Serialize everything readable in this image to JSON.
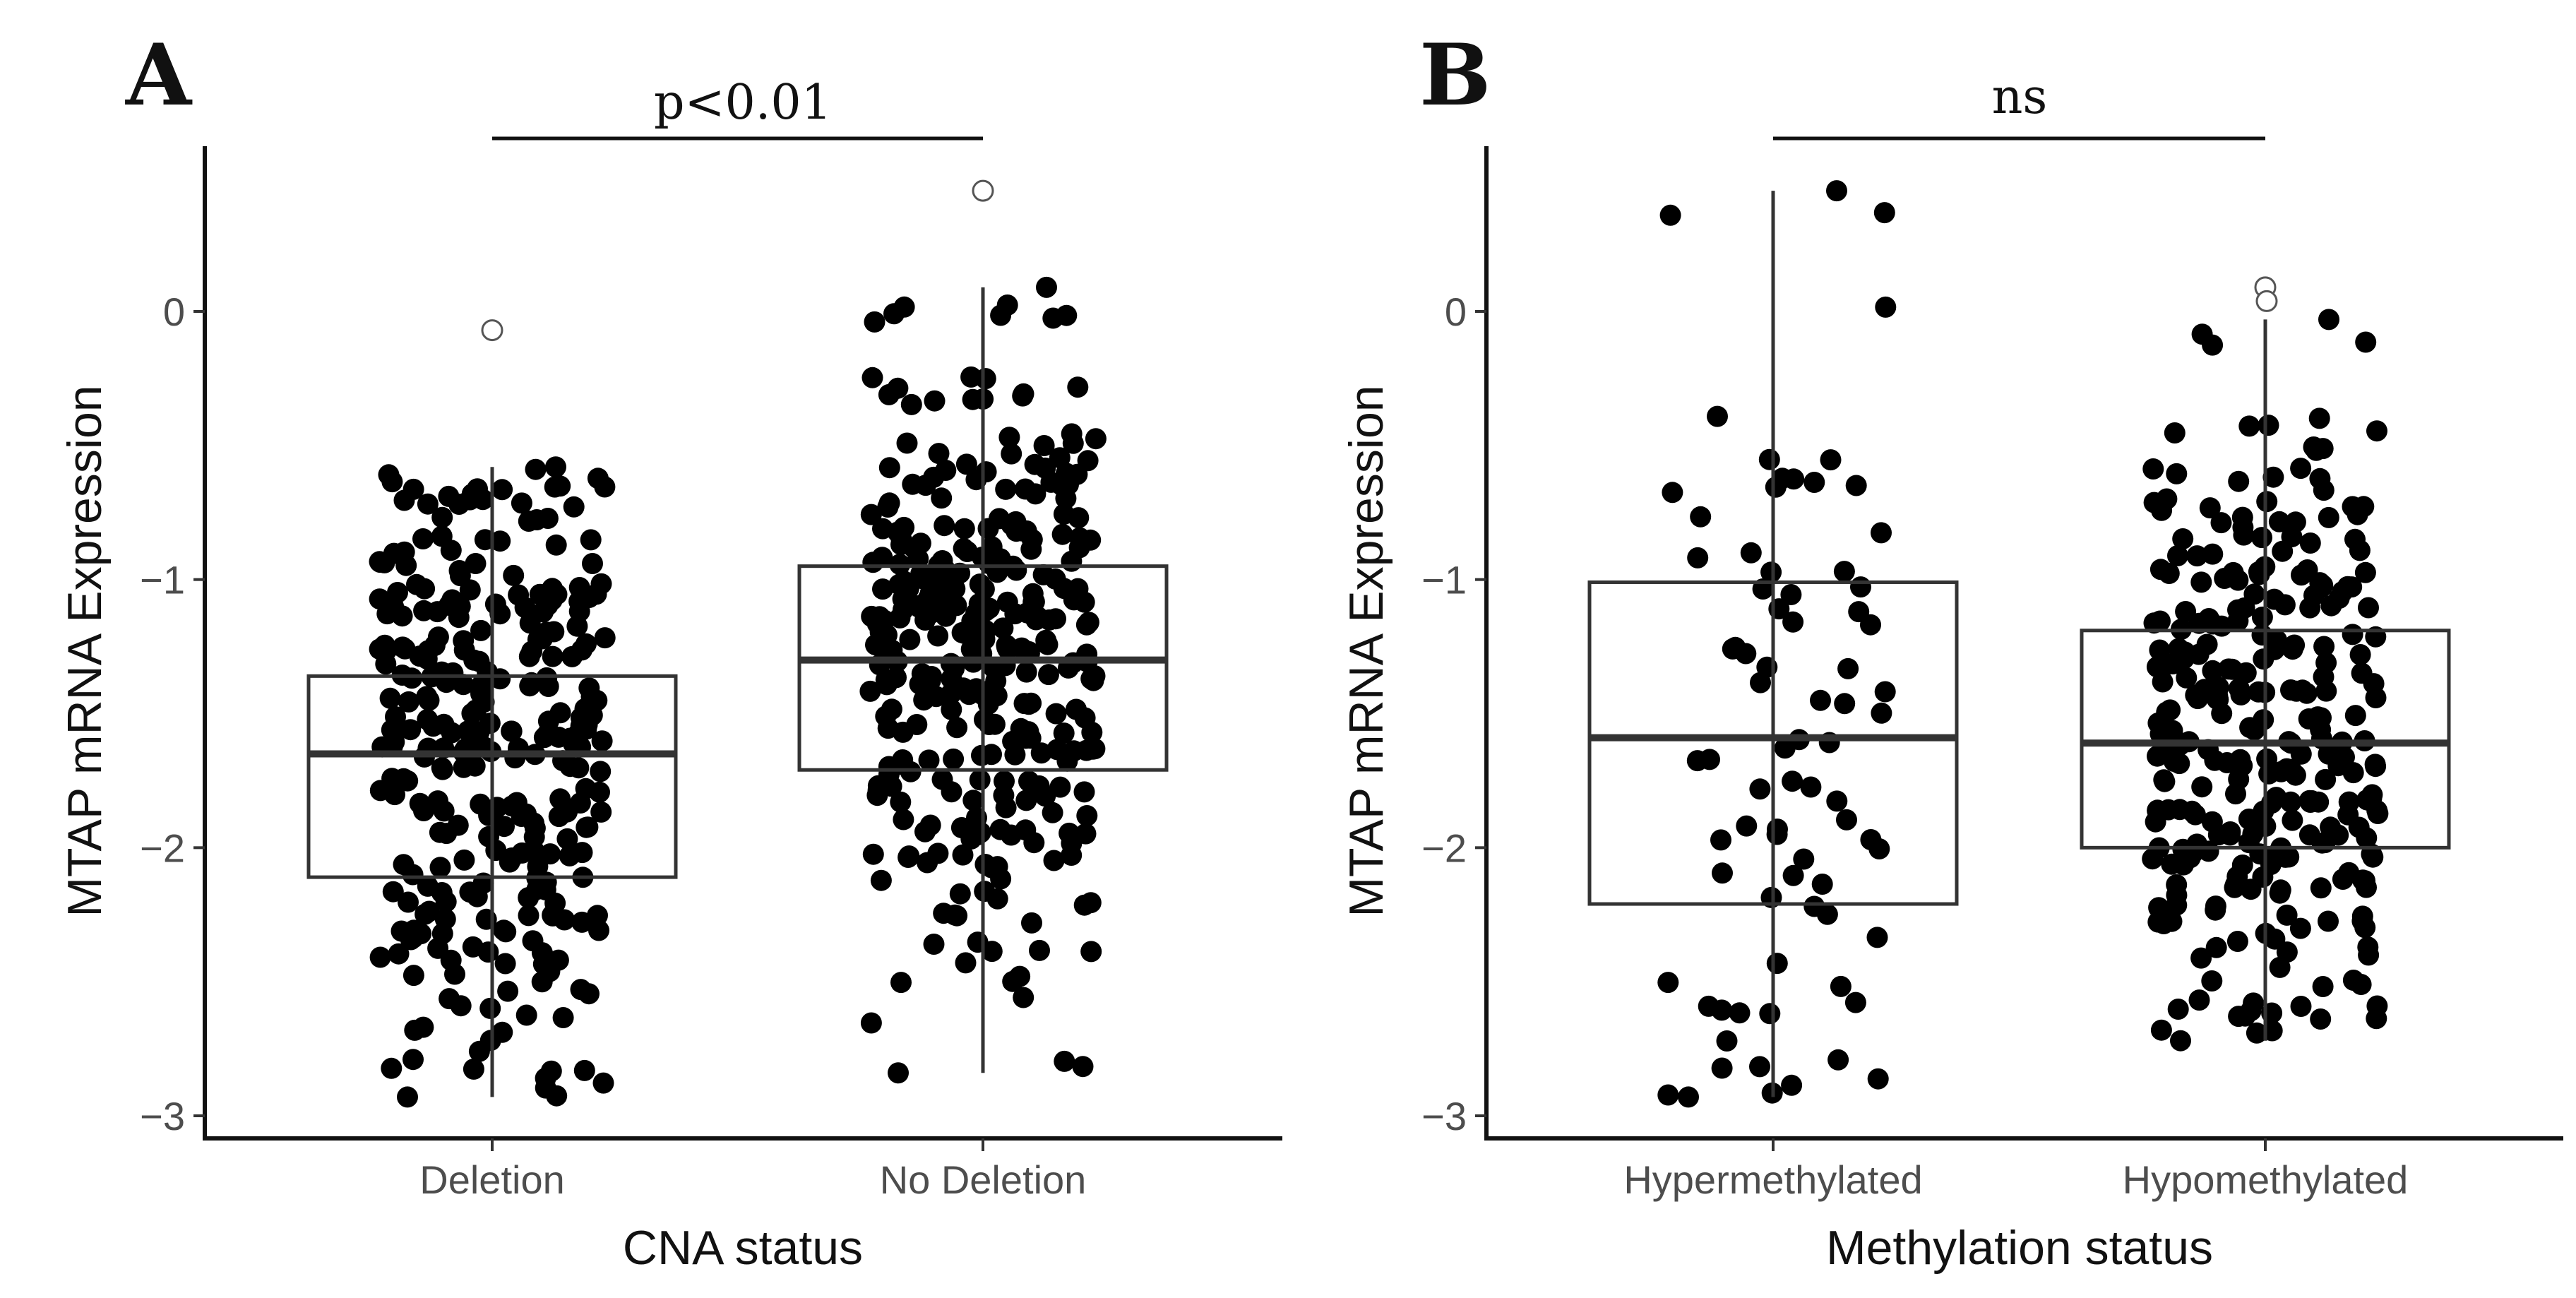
{
  "chart_data": [
    {
      "panel": "A",
      "type": "box",
      "ylabel": "MTAP mRNA Expression",
      "xlabel": "CNA status",
      "ylim": [
        -3.05,
        0.55
      ],
      "yticks": [
        0,
        -1,
        -2,
        -3
      ],
      "ytick_labels": [
        "0",
        "−1",
        "−2",
        "−3"
      ],
      "significance": "p<0.01",
      "groups": [
        {
          "name": "Deletion",
          "q1": -2.11,
          "median": -1.65,
          "q3": -1.36,
          "whisker_low": -2.93,
          "whisker_high": -0.58,
          "outliers": [
            -0.07
          ],
          "n_points": 300
        },
        {
          "name": "No Deletion",
          "q1": -1.71,
          "median": -1.3,
          "q3": -0.95,
          "whisker_low": -2.84,
          "whisker_high": 0.09,
          "outliers": [
            0.45
          ],
          "n_points": 320
        }
      ]
    },
    {
      "panel": "B",
      "type": "box",
      "ylabel": "MTAP mRNA Expression",
      "xlabel": "Methylation status",
      "ylim": [
        -3.05,
        0.55
      ],
      "yticks": [
        0,
        -1,
        -2,
        -3
      ],
      "ytick_labels": [
        "0",
        "−1",
        "−2",
        "−3"
      ],
      "significance": "ns",
      "groups": [
        {
          "name": "Hypermethylated",
          "q1": -2.21,
          "median": -1.59,
          "q3": -1.01,
          "whisker_low": -2.93,
          "whisker_high": 0.45,
          "outliers": [],
          "n_points": 75
        },
        {
          "name": "Hypomethylated",
          "q1": -2.0,
          "median": -1.61,
          "q3": -1.19,
          "whisker_low": -2.72,
          "whisker_high": -0.03,
          "outliers": [
            0.09,
            0.07
          ],
          "n_points": 290
        }
      ]
    }
  ]
}
